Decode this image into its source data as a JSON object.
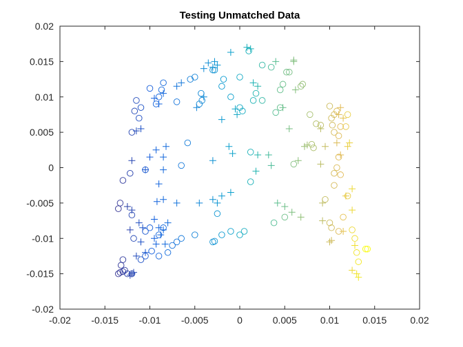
{
  "chart_data": {
    "type": "scatter",
    "title": "Testing Unmatched Data",
    "xlabel": "",
    "ylabel": "",
    "xlim": [
      -0.02,
      0.02
    ],
    "ylim": [
      -0.02,
      0.02
    ],
    "xticks": [
      -0.02,
      -0.015,
      -0.01,
      -0.005,
      0,
      0.005,
      0.01,
      0.015,
      0.02
    ],
    "xtick_labels": [
      "-0.02",
      "-0.015",
      "-0.01",
      "-0.005",
      "0",
      "0.005",
      "0.01",
      "0.015",
      "0.02"
    ],
    "yticks": [
      -0.02,
      -0.015,
      -0.01,
      -0.005,
      0,
      0.005,
      0.01,
      0.015,
      0.02
    ],
    "ytick_labels": [
      "-0.02",
      "-0.015",
      "-0.01",
      "-0.005",
      "0",
      "0.005",
      "0.01",
      "0.015",
      "0.02"
    ],
    "grid": false,
    "legend": "none",
    "colormap": "parula",
    "series": [
      {
        "marker": "circle",
        "points": [
          [
            -0.0135,
            -0.015
          ],
          [
            -0.0133,
            -0.0148
          ],
          [
            -0.013,
            -0.0147
          ],
          [
            -0.0132,
            -0.0138
          ],
          [
            -0.013,
            -0.013
          ],
          [
            -0.0128,
            -0.0145
          ],
          [
            -0.0125,
            -0.015
          ],
          [
            -0.012,
            -0.015
          ],
          [
            -0.011,
            -0.013
          ],
          [
            -0.0105,
            -0.0125
          ],
          [
            -0.0098,
            -0.0118
          ],
          [
            -0.009,
            -0.0125
          ],
          [
            -0.008,
            -0.012
          ],
          [
            -0.0075,
            -0.011
          ],
          [
            -0.007,
            -0.0105
          ],
          [
            -0.0065,
            -0.01
          ],
          [
            -0.005,
            -0.0095
          ],
          [
            -0.003,
            -0.0105
          ],
          [
            -0.0028,
            -0.0104
          ],
          [
            -0.002,
            -0.0095
          ],
          [
            -0.001,
            -0.009
          ],
          [
            0.0,
            -0.0095
          ],
          [
            0.0005,
            -0.009
          ],
          [
            -0.0135,
            -0.0058
          ],
          [
            -0.0133,
            -0.005
          ],
          [
            -0.012,
            -0.0067
          ],
          [
            -0.0118,
            -0.01
          ],
          [
            -0.0105,
            -0.009
          ],
          [
            -0.01,
            -0.0085
          ],
          [
            -0.009,
            -0.0095
          ],
          [
            -0.0085,
            -0.0085
          ],
          [
            -0.013,
            -0.0018
          ],
          [
            -0.0122,
            -0.0008
          ],
          [
            -0.0105,
            -0.0003
          ],
          [
            -0.0065,
            0.0003
          ],
          [
            -0.012,
            0.005
          ],
          [
            -0.0112,
            0.007
          ],
          [
            -0.011,
            0.0085
          ],
          [
            -0.0117,
            0.008
          ],
          [
            -0.0115,
            0.0095
          ],
          [
            -0.01,
            0.0112
          ],
          [
            -0.0093,
            0.009
          ],
          [
            -0.009,
            0.01
          ],
          [
            -0.0087,
            0.011
          ],
          [
            -0.0085,
            0.012
          ],
          [
            -0.007,
            0.0093
          ],
          [
            -0.0055,
            0.0125
          ],
          [
            -0.005,
            0.0128
          ],
          [
            -0.0045,
            0.009
          ],
          [
            -0.0043,
            0.0105
          ],
          [
            -0.0042,
            0.0095
          ],
          [
            -0.003,
            0.0138
          ],
          [
            -0.0028,
            0.0138
          ],
          [
            -0.002,
            0.0115
          ],
          [
            -0.0018,
            0.0125
          ],
          [
            -0.001,
            0.01
          ],
          [
            -0.0058,
            0.0035
          ],
          [
            -0.0025,
            -0.0065
          ],
          [
            0.0,
            0.0085
          ],
          [
            0.0003,
            0.008
          ],
          [
            0.0,
            0.0128
          ],
          [
            0.001,
            0.0165
          ],
          [
            0.0012,
            -0.002
          ],
          [
            0.0012,
            0.0022
          ],
          [
            0.0015,
            0.0095
          ],
          [
            0.0018,
            0.0105
          ],
          [
            0.0025,
            0.0095
          ],
          [
            0.0025,
            0.0145
          ],
          [
            0.0035,
            0.0142
          ],
          [
            0.0038,
            -0.0078
          ],
          [
            0.004,
            0.0078
          ],
          [
            0.0045,
            0.0085
          ],
          [
            0.0045,
            0.011
          ],
          [
            0.0048,
            0.0118
          ],
          [
            0.005,
            -0.007
          ],
          [
            0.0052,
            0.0135
          ],
          [
            0.0055,
            0.0135
          ],
          [
            0.006,
            0.0005
          ],
          [
            0.0068,
            0.0115
          ],
          [
            0.007,
            0.0118
          ],
          [
            0.008,
            0.0033
          ],
          [
            0.0082,
            0.0028
          ],
          [
            0.0078,
            0.0075
          ],
          [
            0.0085,
            0.0062
          ],
          [
            0.009,
            0.006
          ],
          [
            0.01,
            0.0087
          ],
          [
            0.0102,
            0.007
          ],
          [
            0.0103,
            0.006
          ],
          [
            0.0105,
            0.0075
          ],
          [
            0.0108,
            0.008
          ],
          [
            0.0105,
            0.005
          ],
          [
            0.011,
            0.0045
          ],
          [
            0.0112,
            0.0058
          ],
          [
            0.0118,
            0.0058
          ],
          [
            0.012,
            0.0075
          ],
          [
            0.011,
            0.0015
          ],
          [
            0.0108,
            0.0
          ],
          [
            0.0105,
            -0.0008
          ],
          [
            0.0112,
            -0.001
          ],
          [
            0.0105,
            -0.0025
          ],
          [
            0.0095,
            -0.0045
          ],
          [
            0.01,
            -0.0078
          ],
          [
            0.0102,
            -0.0085
          ],
          [
            0.011,
            -0.009
          ],
          [
            0.0115,
            -0.007
          ],
          [
            0.012,
            -0.004
          ],
          [
            0.0125,
            -0.0088
          ],
          [
            0.0128,
            -0.01
          ],
          [
            0.013,
            -0.012
          ],
          [
            0.0132,
            -0.0133
          ],
          [
            0.014,
            -0.0115
          ],
          [
            0.0142,
            -0.0115
          ]
        ]
      },
      {
        "marker": "plus",
        "points": [
          [
            -0.012,
            -0.015
          ],
          [
            -0.0118,
            -0.0148
          ],
          [
            -0.0122,
            -0.0152
          ],
          [
            -0.0115,
            -0.0125
          ],
          [
            -0.011,
            -0.0105
          ],
          [
            -0.0105,
            -0.012
          ],
          [
            -0.0095,
            -0.01
          ],
          [
            -0.0093,
            -0.0108
          ],
          [
            -0.009,
            -0.0085
          ],
          [
            -0.0088,
            -0.0095
          ],
          [
            -0.0085,
            -0.0088
          ],
          [
            -0.0083,
            -0.0108
          ],
          [
            -0.008,
            -0.0078
          ],
          [
            -0.0125,
            -0.0055
          ],
          [
            -0.0122,
            -0.0088
          ],
          [
            -0.012,
            -0.006
          ],
          [
            -0.0112,
            -0.0078
          ],
          [
            -0.0108,
            -0.0085
          ],
          [
            -0.0095,
            -0.0073
          ],
          [
            -0.0092,
            -0.0048
          ],
          [
            -0.0085,
            -0.0045
          ],
          [
            -0.007,
            -0.005
          ],
          [
            -0.012,
            0.001
          ],
          [
            -0.0105,
            -0.0003
          ],
          [
            -0.01,
            0.0015
          ],
          [
            -0.009,
            -0.0023
          ],
          [
            -0.0085,
            0.0015
          ],
          [
            -0.0085,
            -0.0003
          ],
          [
            -0.0082,
            0.003
          ],
          [
            -0.0093,
            0.0025
          ],
          [
            -0.0115,
            0.0052
          ],
          [
            -0.011,
            0.0055
          ],
          [
            -0.0095,
            0.0098
          ],
          [
            -0.009,
            0.009
          ],
          [
            -0.0085,
            0.0105
          ],
          [
            -0.007,
            0.0115
          ],
          [
            -0.0065,
            0.012
          ],
          [
            -0.0048,
            0.0085
          ],
          [
            -0.004,
            0.01
          ],
          [
            -0.0035,
            0.0148
          ],
          [
            -0.003,
            0.0142
          ],
          [
            -0.0028,
            0.015
          ],
          [
            -0.0025,
            0.0145
          ],
          [
            -0.004,
            0.014
          ],
          [
            -0.002,
            0.0068
          ],
          [
            -0.003,
            0.001
          ],
          [
            -0.0045,
            -0.005
          ],
          [
            -0.003,
            -0.0045
          ],
          [
            -0.0025,
            -0.005
          ],
          [
            -0.002,
            -0.004
          ],
          [
            -0.001,
            -0.0035
          ],
          [
            -0.0012,
            0.003
          ],
          [
            -0.001,
            0.0163
          ],
          [
            -0.0008,
            0.002
          ],
          [
            -0.0005,
            0.0083
          ],
          [
            -0.0003,
            0.0075
          ],
          [
            0.0008,
            0.017
          ],
          [
            0.0012,
            0.0168
          ],
          [
            0.0015,
            0.012
          ],
          [
            0.0018,
            -0.0005
          ],
          [
            0.002,
            0.0115
          ],
          [
            0.002,
            0.0018
          ],
          [
            0.0032,
            0.0018
          ],
          [
            0.0035,
            0.0003
          ],
          [
            0.004,
            0.015
          ],
          [
            0.0042,
            -0.005
          ],
          [
            0.0048,
            0.0085
          ],
          [
            0.005,
            -0.0055
          ],
          [
            0.0055,
            0.0055
          ],
          [
            0.0058,
            -0.0063
          ],
          [
            0.006,
            0.015
          ],
          [
            0.006,
            0.0152
          ],
          [
            0.0062,
            0.011
          ],
          [
            0.0065,
            0.001
          ],
          [
            0.0068,
            -0.007
          ],
          [
            0.0072,
            0.003
          ],
          [
            0.0075,
            0.0032
          ],
          [
            0.009,
            0.0005
          ],
          [
            0.009,
            0.0055
          ],
          [
            0.0092,
            -0.005
          ],
          [
            0.0092,
            -0.0075
          ],
          [
            0.0095,
            0.003
          ],
          [
            0.01,
            -0.0105
          ],
          [
            0.0102,
            -0.0103
          ],
          [
            0.0108,
            0.0035
          ],
          [
            0.011,
            0.0075
          ],
          [
            0.0112,
            0.0085
          ],
          [
            0.0115,
            0.007
          ],
          [
            0.0112,
            0.0018
          ],
          [
            0.0115,
            -0.009
          ],
          [
            0.0118,
            -0.004
          ],
          [
            0.012,
            0.003
          ],
          [
            0.0122,
            0.0035
          ],
          [
            0.0125,
            -0.003
          ],
          [
            0.0125,
            -0.006
          ],
          [
            0.0125,
            -0.0145
          ],
          [
            0.0128,
            -0.011
          ],
          [
            0.013,
            -0.015
          ],
          [
            0.0132,
            -0.0155
          ]
        ]
      }
    ]
  }
}
